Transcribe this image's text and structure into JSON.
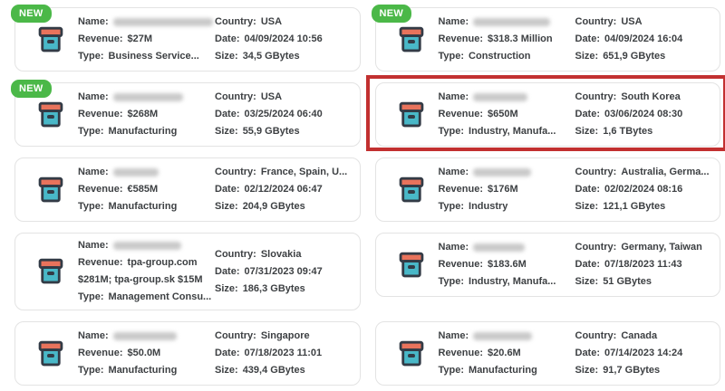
{
  "badge": {
    "label": "NEW"
  },
  "labels": {
    "name": "Name:",
    "revenue": "Revenue:",
    "type": "Type:",
    "country": "Country:",
    "date": "Date:",
    "size": "Size:"
  },
  "icon": {
    "name": "archive-box-icon"
  },
  "theme": {
    "badge_green": "#4bb848",
    "highlight_red": "#c23030",
    "text": "#3d4043",
    "card_border": "#e3e3e3",
    "icon_outline": "#333b46",
    "icon_lid": "#e8735c",
    "icon_body": "#49b8c8",
    "blur_fill": "#c9c9c9"
  },
  "cards": [
    {
      "is_new": true,
      "highlighted": false,
      "name_blur_width": 110,
      "revenue": "$27M",
      "type": "Business Service...",
      "country": "USA",
      "date": "04/09/2024 10:56",
      "size": "34,5 GBytes"
    },
    {
      "is_new": true,
      "highlighted": false,
      "name_blur_width": 85,
      "revenue": "$318.3 Million",
      "type": "Construction",
      "country": "USA",
      "date": "04/09/2024 16:04",
      "size": "651,9 GBytes"
    },
    {
      "is_new": true,
      "highlighted": false,
      "name_blur_width": 77,
      "revenue": "$268M",
      "type": "Manufacturing",
      "country": "USA",
      "date": "03/25/2024 06:40",
      "size": "55,9 GBytes"
    },
    {
      "is_new": false,
      "highlighted": true,
      "name_blur_width": 60,
      "revenue": "$650M",
      "type": "Industry, Manufa...",
      "country": "South Korea",
      "date": "03/06/2024 08:30",
      "size": "1,6 TBytes"
    },
    {
      "is_new": false,
      "highlighted": false,
      "name_blur_width": 50,
      "revenue": "€585M",
      "type": "Manufacturing",
      "country": "France, Spain, U...",
      "date": "02/12/2024 06:47",
      "size": "204,9 GBytes"
    },
    {
      "is_new": false,
      "highlighted": false,
      "name_blur_width": 64,
      "revenue": "$176M",
      "type": "Industry",
      "country": "Australia, Germa...",
      "date": "02/02/2024 08:16",
      "size": "121,1 GBytes"
    },
    {
      "is_new": false,
      "highlighted": false,
      "name_blur_width": 75,
      "revenue": "tpa-group.com $281M; tpa-group.sk $15M",
      "type": "Management Consu...",
      "country": "Slovakia",
      "date": "07/31/2023 09:47",
      "size": "186,3 GBytes"
    },
    {
      "is_new": false,
      "highlighted": false,
      "name_blur_width": 57,
      "revenue": "$183.6M",
      "type": "Industry, Manufa...",
      "country": "Germany, Taiwan",
      "date": "07/18/2023 11:43",
      "size": "51 GBytes"
    },
    {
      "is_new": false,
      "highlighted": false,
      "name_blur_width": 70,
      "revenue": "$50.0M",
      "type": "Manufacturing",
      "country": "Singapore",
      "date": "07/18/2023 11:01",
      "size": "439,4 GBytes"
    },
    {
      "is_new": false,
      "highlighted": false,
      "name_blur_width": 65,
      "revenue": "$20.6M",
      "type": "Manufacturing",
      "country": "Canada",
      "date": "07/14/2023 14:24",
      "size": "91,7 GBytes"
    }
  ]
}
